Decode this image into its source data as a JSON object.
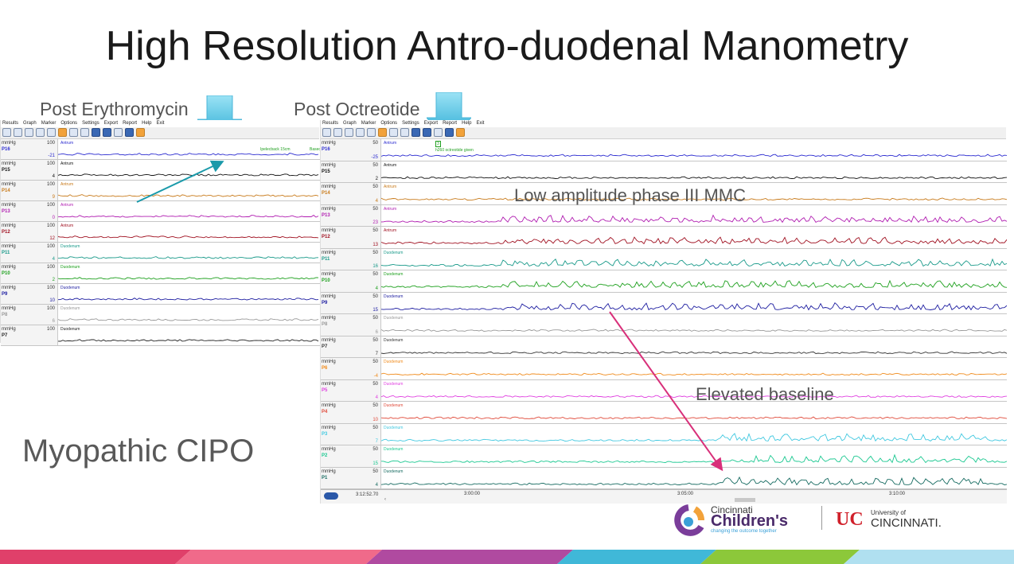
{
  "title": "High Resolution Antro-duodenal Manometry",
  "captions": {
    "post_erythromycin": "Post Erythromycin",
    "post_octreotide": "Post Octreotide",
    "low_amplitude": "Low amplitude phase III MMC",
    "elevated_baseline": "Elevated baseline",
    "myopathic": "Myopathic CIPO"
  },
  "menu": [
    "Results",
    "Graph",
    "Marker",
    "Options",
    "Settings",
    "Export",
    "Report",
    "Help",
    "Exit"
  ],
  "left_panel": {
    "unit": "mmHg",
    "channels": [
      {
        "name": "P16",
        "max": "100",
        "min": "-21",
        "region": "Antrum",
        "color": "#2b2bd0"
      },
      {
        "name": "P15",
        "max": "100",
        "min": "4",
        "region": "Antrum",
        "color": "#111111"
      },
      {
        "name": "P14",
        "max": "100",
        "min": "9",
        "region": "Antrum",
        "color": "#c87a1a"
      },
      {
        "name": "P13",
        "max": "100",
        "min": "0",
        "region": "Antrum",
        "color": "#b01cb0"
      },
      {
        "name": "P12",
        "max": "100",
        "min": "12",
        "region": "Antrum",
        "color": "#a01020"
      },
      {
        "name": "P11",
        "max": "100",
        "min": "4",
        "region": "Duodenum",
        "color": "#1a9a8a"
      },
      {
        "name": "P10",
        "max": "100",
        "min": "2",
        "region": "Duodenum",
        "color": "#1ea01e"
      },
      {
        "name": "P9",
        "max": "100",
        "min": "10",
        "region": "Duodenum",
        "color": "#1c1ca0"
      },
      {
        "name": "P8",
        "max": "100",
        "min": "6",
        "region": "Duodenum",
        "color": "#999999"
      },
      {
        "name": "P7",
        "max": "100",
        "min": "",
        "region": "Duodenum",
        "color": "#222222"
      }
    ],
    "annotation_1": "Ipelecback 15cm",
    "annotation_2": "Baseca"
  },
  "right_panel": {
    "unit": "mmHg",
    "channels": [
      {
        "name": "P16",
        "max": "50",
        "min": "-25",
        "region": "Antrum",
        "color": "#2b2bd0"
      },
      {
        "name": "P15",
        "max": "50",
        "min": "2",
        "region": "Antrum",
        "color": "#111111"
      },
      {
        "name": "P14",
        "max": "50",
        "min": "4",
        "region": "Antrum",
        "color": "#c87a1a"
      },
      {
        "name": "P13",
        "max": "50",
        "min": "23",
        "region": "Antrum",
        "color": "#b01cb0"
      },
      {
        "name": "P12",
        "max": "50",
        "min": "13",
        "region": "Antrum",
        "color": "#a01020"
      },
      {
        "name": "P11",
        "max": "50",
        "min": "16",
        "region": "Duodenum",
        "color": "#1a9a8a"
      },
      {
        "name": "P10",
        "max": "50",
        "min": "4",
        "region": "Duodenum",
        "color": "#1ea01e"
      },
      {
        "name": "P9",
        "max": "50",
        "min": "15",
        "region": "Duodenum",
        "color": "#1c1ca0"
      },
      {
        "name": "P8",
        "max": "50",
        "min": "6",
        "region": "Duodenum",
        "color": "#999999"
      },
      {
        "name": "P7",
        "max": "50",
        "min": "7",
        "region": "Duodenum",
        "color": "#333333"
      },
      {
        "name": "P6",
        "max": "50",
        "min": "-4",
        "region": "Duodenum",
        "color": "#f08a1a"
      },
      {
        "name": "P5",
        "max": "50",
        "min": "4",
        "region": "Duodenum",
        "color": "#e040e0"
      },
      {
        "name": "P4",
        "max": "50",
        "min": "10",
        "region": "Duodenum",
        "color": "#e04a3a"
      },
      {
        "name": "P3",
        "max": "50",
        "min": "7",
        "region": "Duodenum",
        "color": "#40c8e0"
      },
      {
        "name": "P2",
        "max": "50",
        "min": "15",
        "region": "Duodenum",
        "color": "#1ac890"
      },
      {
        "name": "P1",
        "max": "50",
        "min": "4",
        "region": "Duodenum",
        "color": "#156a60"
      }
    ],
    "annotation": "h260 octreotide given",
    "marker_label": "3",
    "timestamp": "3:12:52.70",
    "time_ticks": [
      "3:00:00",
      "3:05:00",
      "3:10:00"
    ]
  },
  "logos": {
    "cincinnati": "Cincinnati",
    "childrens": "Children's",
    "tagline": "changing the outcome together",
    "university_of": "University of",
    "cincinnati_uc": "CINCINNATI."
  }
}
